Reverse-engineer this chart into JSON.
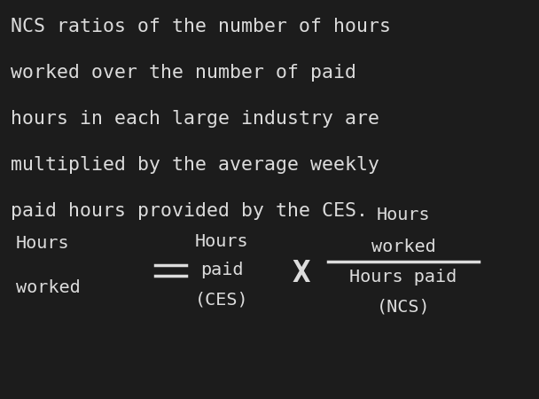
{
  "background_color": "#1c1c1c",
  "chalk_color": "#dcdcdc",
  "main_text_lines": [
    "NCS ratios of the number of hours",
    "worked over the number of paid",
    "hours in each large industry are",
    "multiplied by the average weekly",
    "paid hours provided by the CES."
  ],
  "lhs_line1": "Hours",
  "lhs_line2": "worked",
  "eq_symbol": "=",
  "rhs1_line1": "Hours",
  "rhs1_line2": "paid",
  "rhs1_line3": "(CES)",
  "multiply_symbol": "X",
  "frac_num_line1": "Hours",
  "frac_num_line2": "worked",
  "frac_den_line1": "Hours paid",
  "frac_den_line2": "(NCS)",
  "main_fontsize": 15.5,
  "formula_fontsize": 14.5,
  "fig_width": 6.08,
  "fig_height": 4.5,
  "dpi": 100
}
